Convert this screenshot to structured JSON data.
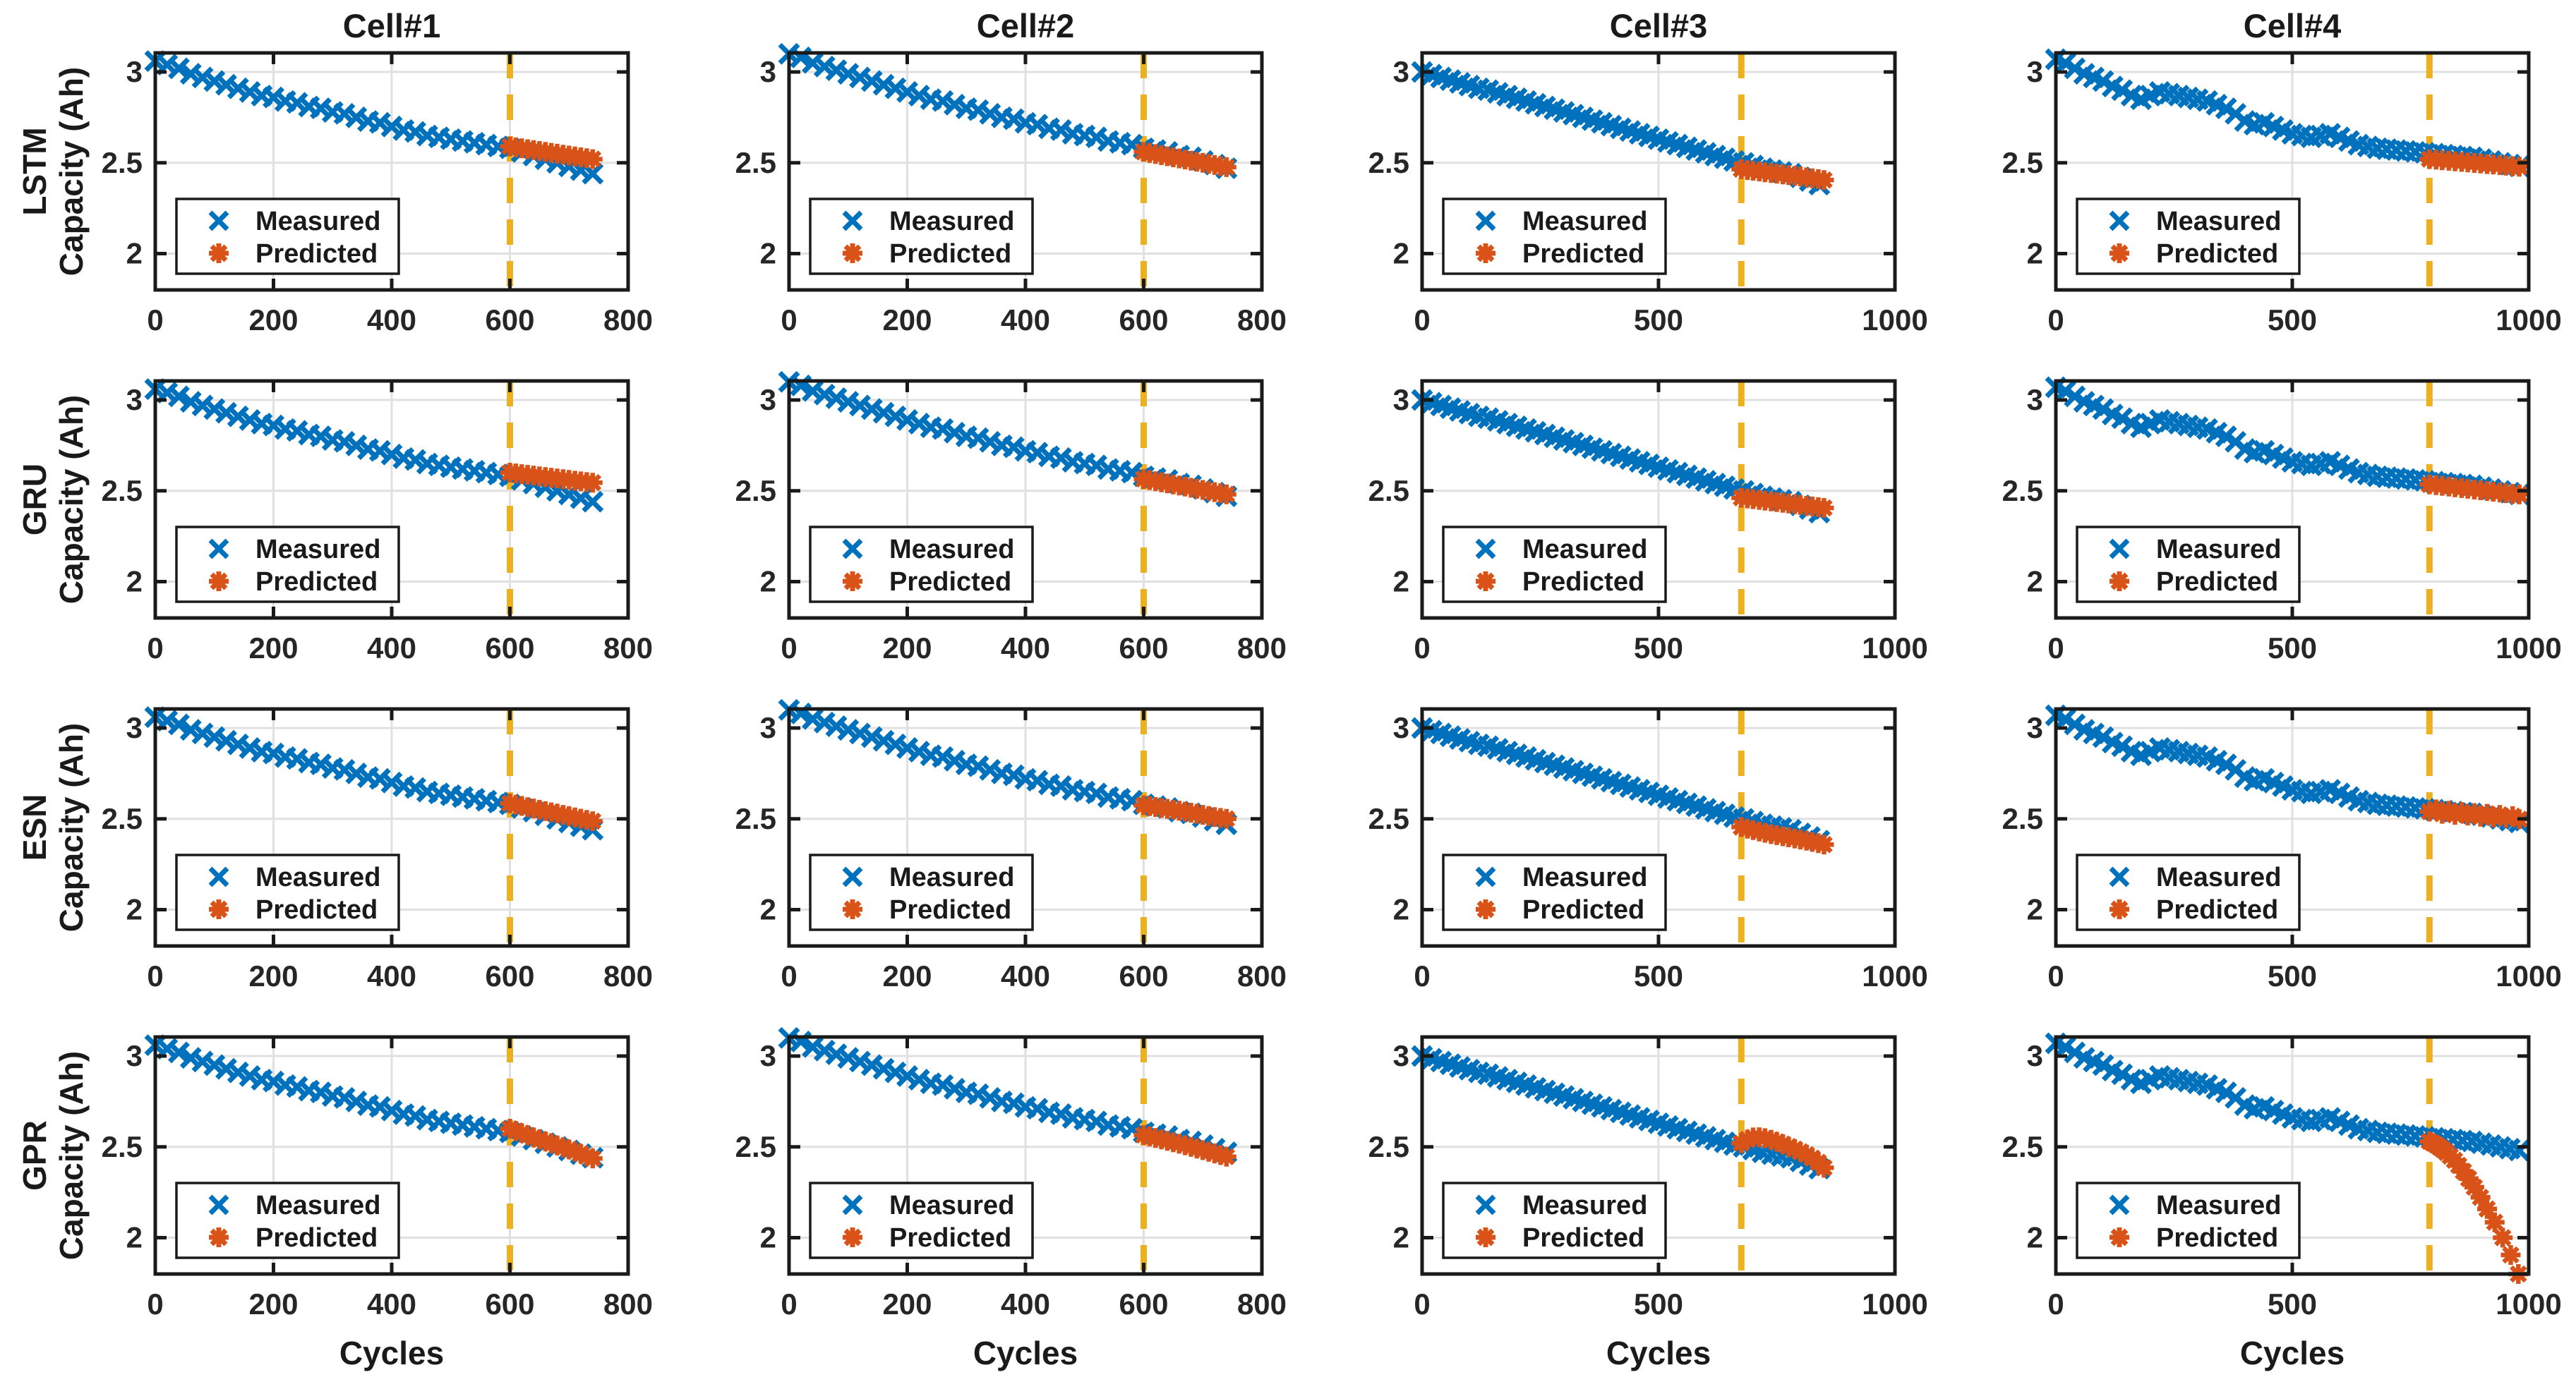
{
  "figure": {
    "column_titles": [
      "Cell#1",
      "Cell#2",
      "Cell#3",
      "Cell#4"
    ],
    "row_labels": [
      "LSTM",
      "GRU",
      "ESN",
      "GPR"
    ],
    "ylabel_line2": "Capacity (Ah)",
    "xlabel": "Cycles",
    "legend": {
      "measured_label": "Measured",
      "predicted_label": "Predicted"
    },
    "colors": {
      "measured": "#0072BD",
      "predicted": "#D95319",
      "vline": "#EDB120",
      "grid": "#E0E0E0",
      "axis": "#1A1A1A",
      "text": "#262626",
      "legend_bg": "#FFFFFF"
    }
  },
  "chart_data": {
    "type": "scatter",
    "grid_layout": {
      "rows": 4,
      "cols": 4,
      "grid_on": true,
      "legend_position": "lower-left"
    },
    "ylim": [
      1.8,
      3.105
    ],
    "yticks": [
      2,
      2.5,
      3
    ],
    "columns": [
      {
        "title": "Cell#1",
        "xlim": [
          0,
          800
        ],
        "xticks": [
          0,
          200,
          400,
          600,
          800
        ],
        "prediction_start": 600,
        "measured": {
          "x": [
            0,
            20,
            40,
            60,
            80,
            100,
            120,
            140,
            160,
            180,
            200,
            220,
            240,
            260,
            280,
            300,
            320,
            340,
            360,
            380,
            400,
            420,
            440,
            460,
            480,
            500,
            520,
            540,
            560,
            580,
            600,
            620,
            640,
            660,
            680,
            700,
            720,
            740
          ],
          "y": [
            3.06,
            3.04,
            3.02,
            2.99,
            2.97,
            2.95,
            2.93,
            2.91,
            2.89,
            2.87,
            2.86,
            2.84,
            2.83,
            2.81,
            2.8,
            2.78,
            2.77,
            2.75,
            2.73,
            2.72,
            2.7,
            2.68,
            2.67,
            2.65,
            2.64,
            2.63,
            2.62,
            2.61,
            2.6,
            2.59,
            2.58,
            2.56,
            2.54,
            2.52,
            2.5,
            2.48,
            2.46,
            2.44
          ]
        }
      },
      {
        "title": "Cell#2",
        "xlim": [
          0,
          800
        ],
        "xticks": [
          0,
          200,
          400,
          600,
          800
        ],
        "prediction_start": 600,
        "measured": {
          "x": [
            0,
            20,
            40,
            60,
            80,
            100,
            120,
            140,
            160,
            180,
            200,
            220,
            240,
            260,
            280,
            300,
            320,
            340,
            360,
            380,
            400,
            420,
            440,
            460,
            480,
            500,
            520,
            540,
            560,
            580,
            600,
            620,
            640,
            660,
            680,
            700,
            720,
            740
          ],
          "y": [
            3.1,
            3.08,
            3.05,
            3.03,
            3.01,
            2.99,
            2.97,
            2.95,
            2.93,
            2.91,
            2.89,
            2.87,
            2.85,
            2.84,
            2.82,
            2.8,
            2.79,
            2.77,
            2.75,
            2.74,
            2.72,
            2.71,
            2.69,
            2.68,
            2.66,
            2.65,
            2.64,
            2.62,
            2.61,
            2.6,
            2.58,
            2.57,
            2.56,
            2.54,
            2.53,
            2.51,
            2.49,
            2.47
          ]
        }
      },
      {
        "title": "Cell#3",
        "xlim": [
          0,
          1000
        ],
        "xticks": [
          0,
          500,
          1000
        ],
        "prediction_start": 675,
        "measured": {
          "x": [
            0,
            20,
            40,
            60,
            80,
            100,
            120,
            140,
            160,
            180,
            200,
            220,
            240,
            260,
            280,
            300,
            320,
            340,
            360,
            380,
            400,
            420,
            440,
            460,
            480,
            500,
            520,
            540,
            560,
            580,
            600,
            620,
            640,
            660,
            680,
            700,
            720,
            740,
            760,
            780,
            800,
            820,
            840
          ],
          "y": [
            3.0,
            2.985,
            2.97,
            2.955,
            2.94,
            2.925,
            2.91,
            2.9,
            2.885,
            2.87,
            2.855,
            2.84,
            2.825,
            2.81,
            2.795,
            2.78,
            2.765,
            2.75,
            2.735,
            2.72,
            2.705,
            2.69,
            2.675,
            2.66,
            2.645,
            2.63,
            2.615,
            2.6,
            2.585,
            2.57,
            2.555,
            2.54,
            2.525,
            2.51,
            2.5,
            2.485,
            2.47,
            2.46,
            2.45,
            2.44,
            2.42,
            2.4,
            2.38
          ]
        }
      },
      {
        "title": "Cell#4",
        "xlim": [
          0,
          1000
        ],
        "xticks": [
          0,
          500,
          1000
        ],
        "prediction_start": 790,
        "measured": {
          "x": [
            0,
            20,
            40,
            60,
            80,
            100,
            120,
            140,
            160,
            180,
            200,
            220,
            240,
            260,
            280,
            300,
            320,
            340,
            360,
            380,
            400,
            420,
            440,
            460,
            480,
            500,
            520,
            540,
            560,
            580,
            600,
            620,
            640,
            660,
            680,
            700,
            720,
            740,
            760,
            780,
            800,
            820,
            840,
            860,
            880,
            900,
            920,
            940,
            960,
            980
          ],
          "y": [
            3.07,
            3.05,
            3.02,
            2.99,
            2.97,
            2.95,
            2.92,
            2.9,
            2.87,
            2.85,
            2.87,
            2.89,
            2.88,
            2.87,
            2.86,
            2.85,
            2.84,
            2.82,
            2.8,
            2.77,
            2.73,
            2.71,
            2.72,
            2.7,
            2.68,
            2.66,
            2.65,
            2.64,
            2.65,
            2.66,
            2.64,
            2.62,
            2.6,
            2.59,
            2.58,
            2.575,
            2.57,
            2.565,
            2.56,
            2.555,
            2.55,
            2.545,
            2.54,
            2.535,
            2.53,
            2.52,
            2.51,
            2.5,
            2.49,
            2.48
          ]
        }
      }
    ],
    "predicted": [
      {
        "model": "LSTM",
        "series": [
          {
            "x": [
              600,
              610,
              620,
              630,
              640,
              650,
              660,
              670,
              680,
              690,
              700,
              710,
              720,
              730,
              740
            ],
            "y": [
              2.59,
              2.585,
              2.58,
              2.575,
              2.57,
              2.565,
              2.56,
              2.555,
              2.55,
              2.545,
              2.54,
              2.535,
              2.53,
              2.525,
              2.52
            ]
          },
          {
            "x": [
              600,
              610,
              620,
              630,
              640,
              650,
              660,
              670,
              680,
              690,
              700,
              710,
              720,
              730,
              740
            ],
            "y": [
              2.56,
              2.554,
              2.548,
              2.542,
              2.536,
              2.53,
              2.524,
              2.518,
              2.512,
              2.506,
              2.5,
              2.494,
              2.488,
              2.482,
              2.476
            ]
          },
          {
            "x": [
              675,
              688,
              700,
              713,
              725,
              738,
              750,
              763,
              775,
              788,
              800,
              813,
              825,
              838,
              850
            ],
            "y": [
              2.465,
              2.46,
              2.456,
              2.452,
              2.448,
              2.444,
              2.44,
              2.436,
              2.432,
              2.428,
              2.424,
              2.42,
              2.415,
              2.41,
              2.405
            ]
          },
          {
            "x": [
              790,
              804,
              817,
              831,
              844,
              858,
              871,
              885,
              898,
              912,
              925,
              939,
              952,
              966,
              980
            ],
            "y": [
              2.52,
              2.517,
              2.514,
              2.511,
              2.508,
              2.505,
              2.502,
              2.499,
              2.496,
              2.493,
              2.49,
              2.487,
              2.484,
              2.481,
              2.478
            ]
          }
        ]
      },
      {
        "model": "GRU",
        "series": [
          {
            "x": [
              600,
              610,
              620,
              630,
              640,
              650,
              660,
              670,
              680,
              690,
              700,
              710,
              720,
              730,
              740
            ],
            "y": [
              2.6,
              2.596,
              2.592,
              2.588,
              2.584,
              2.58,
              2.576,
              2.572,
              2.568,
              2.564,
              2.56,
              2.556,
              2.552,
              2.548,
              2.545
            ]
          },
          {
            "x": [
              600,
              610,
              620,
              630,
              640,
              650,
              660,
              670,
              680,
              690,
              700,
              710,
              720,
              730,
              740
            ],
            "y": [
              2.565,
              2.559,
              2.553,
              2.547,
              2.541,
              2.535,
              2.529,
              2.523,
              2.517,
              2.511,
              2.505,
              2.499,
              2.493,
              2.487,
              2.481
            ]
          },
          {
            "x": [
              675,
              688,
              700,
              713,
              725,
              738,
              750,
              763,
              775,
              788,
              800,
              813,
              825,
              838,
              850
            ],
            "y": [
              2.462,
              2.458,
              2.454,
              2.45,
              2.446,
              2.442,
              2.438,
              2.434,
              2.43,
              2.426,
              2.422,
              2.418,
              2.414,
              2.41,
              2.406
            ]
          },
          {
            "x": [
              790,
              804,
              817,
              831,
              844,
              858,
              871,
              885,
              898,
              912,
              925,
              939,
              952,
              966,
              980
            ],
            "y": [
              2.535,
              2.531,
              2.527,
              2.523,
              2.519,
              2.515,
              2.511,
              2.507,
              2.503,
              2.499,
              2.495,
              2.491,
              2.487,
              2.483,
              2.48
            ]
          }
        ]
      },
      {
        "model": "ESN",
        "series": [
          {
            "x": [
              600,
              610,
              620,
              630,
              640,
              650,
              660,
              670,
              680,
              690,
              700,
              710,
              720,
              730,
              740
            ],
            "y": [
              2.585,
              2.578,
              2.571,
              2.564,
              2.557,
              2.55,
              2.543,
              2.536,
              2.529,
              2.522,
              2.515,
              2.508,
              2.501,
              2.494,
              2.487
            ]
          },
          {
            "x": [
              600,
              610,
              620,
              630,
              640,
              650,
              660,
              670,
              680,
              690,
              700,
              710,
              720,
              730,
              740
            ],
            "y": [
              2.575,
              2.57,
              2.565,
              2.56,
              2.555,
              2.55,
              2.545,
              2.54,
              2.534,
              2.528,
              2.522,
              2.516,
              2.51,
              2.505,
              2.5
            ]
          },
          {
            "x": [
              675,
              688,
              700,
              713,
              725,
              738,
              750,
              763,
              775,
              788,
              800,
              813,
              825,
              838,
              850
            ],
            "y": [
              2.455,
              2.446,
              2.438,
              2.43,
              2.423,
              2.416,
              2.41,
              2.404,
              2.398,
              2.392,
              2.386,
              2.38,
              2.373,
              2.366,
              2.358
            ]
          },
          {
            "x": [
              790,
              804,
              817,
              831,
              844,
              858,
              871,
              885,
              898,
              912,
              925,
              939,
              952,
              966,
              980
            ],
            "y": [
              2.54,
              2.552,
              2.528,
              2.545,
              2.522,
              2.538,
              2.518,
              2.532,
              2.512,
              2.528,
              2.508,
              2.522,
              2.505,
              2.515,
              2.498
            ]
          }
        ]
      },
      {
        "model": "GPR",
        "series": [
          {
            "x": [
              600,
              610,
              620,
              630,
              640,
              650,
              660,
              670,
              680,
              690,
              700,
              710,
              720,
              730,
              740
            ],
            "y": [
              2.6,
              2.588,
              2.576,
              2.564,
              2.552,
              2.541,
              2.53,
              2.519,
              2.508,
              2.497,
              2.486,
              2.475,
              2.462,
              2.449,
              2.436
            ]
          },
          {
            "x": [
              600,
              610,
              620,
              630,
              640,
              650,
              660,
              670,
              680,
              690,
              700,
              710,
              720,
              730,
              740
            ],
            "y": [
              2.565,
              2.557,
              2.549,
              2.541,
              2.533,
              2.525,
              2.517,
              2.509,
              2.5,
              2.491,
              2.482,
              2.473,
              2.464,
              2.455,
              2.446
            ]
          },
          {
            "x": [
              675,
              688,
              700,
              713,
              725,
              738,
              750,
              763,
              775,
              788,
              800,
              813,
              825,
              838,
              850
            ],
            "y": [
              2.52,
              2.541,
              2.552,
              2.553,
              2.548,
              2.539,
              2.528,
              2.515,
              2.502,
              2.488,
              2.473,
              2.457,
              2.438,
              2.415,
              2.385
            ]
          },
          {
            "x": [
              790,
              797,
              804,
              811,
              818,
              826,
              834,
              843,
              852,
              862,
              873,
              885,
              898,
              912,
              928,
              945,
              962,
              978
            ],
            "y": [
              2.53,
              2.521,
              2.511,
              2.499,
              2.486,
              2.469,
              2.449,
              2.426,
              2.398,
              2.365,
              2.325,
              2.278,
              2.222,
              2.158,
              2.085,
              2.0,
              1.905,
              1.8
            ]
          }
        ]
      }
    ]
  }
}
